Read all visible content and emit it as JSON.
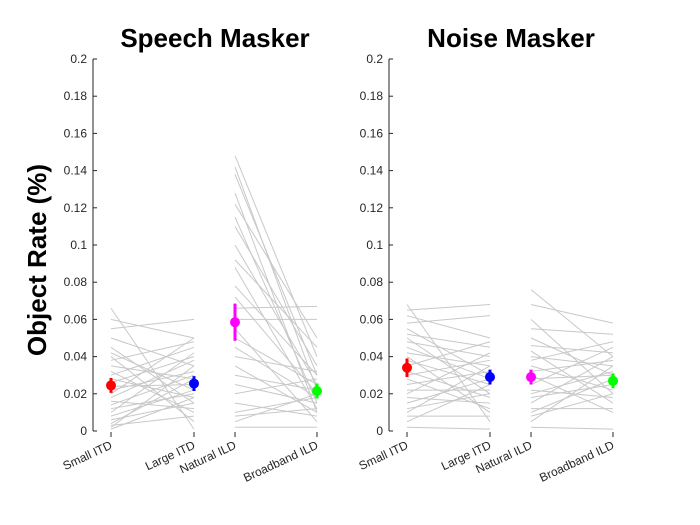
{
  "chart_data": {
    "type": "scatter",
    "ylabel": "Object Rate (%)",
    "ylim": [
      0,
      0.2
    ],
    "yticks": [
      0,
      0.02,
      0.04,
      0.06,
      0.08,
      0.1,
      0.12,
      0.14,
      0.16,
      0.18,
      0.2
    ],
    "ytick_labels": [
      "0",
      "0.02",
      "0.04",
      "0.06",
      "0.08",
      "0.1",
      "0.12",
      "0.14",
      "0.16",
      "0.18",
      "0.2"
    ],
    "conditions": [
      "Small ITD",
      "Large ITD",
      "Natural ILD",
      "Broadband ILD"
    ],
    "condition_colors": [
      "#ff0000",
      "#0000ff",
      "#ff00ff",
      "#00ff00"
    ],
    "subject_line_color": "#c8c8c8",
    "panels": [
      {
        "title": "Speech Masker",
        "means": [
          0.0245,
          0.0255,
          0.0585,
          0.0215
        ],
        "errors": [
          0.004,
          0.004,
          0.01,
          0.004
        ],
        "subjects_itd": [
          [
            0.066,
            0.001
          ],
          [
            0.06,
            0.05
          ],
          [
            0.055,
            0.06
          ],
          [
            0.05,
            0.035
          ],
          [
            0.045,
            0.015
          ],
          [
            0.042,
            0.022
          ],
          [
            0.04,
            0.005
          ],
          [
            0.038,
            0.048
          ],
          [
            0.035,
            0.028
          ],
          [
            0.032,
            0.01
          ],
          [
            0.03,
            0.045
          ],
          [
            0.028,
            0.018
          ],
          [
            0.026,
            0.04
          ],
          [
            0.024,
            0.025
          ],
          [
            0.022,
            0.032
          ],
          [
            0.02,
            0.05
          ],
          [
            0.018,
            0.038
          ],
          [
            0.016,
            0.012
          ],
          [
            0.014,
            0.03
          ],
          [
            0.012,
            0.02
          ],
          [
            0.01,
            0.042
          ],
          [
            0.008,
            0.022
          ],
          [
            0.006,
            0.015
          ],
          [
            0.004,
            0.028
          ],
          [
            0.003,
            0.008
          ],
          [
            0.002,
            0.035
          ],
          [
            0.001,
            0.018
          ]
        ],
        "subjects_ild": [
          [
            0.148,
            0.04
          ],
          [
            0.142,
            0.022
          ],
          [
            0.138,
            0.03
          ],
          [
            0.128,
            0.01
          ],
          [
            0.122,
            0.05
          ],
          [
            0.115,
            0.015
          ],
          [
            0.11,
            0.035
          ],
          [
            0.1,
            0.025
          ],
          [
            0.092,
            0.045
          ],
          [
            0.088,
            0.012
          ],
          [
            0.078,
            0.03
          ],
          [
            0.072,
            0.02
          ],
          [
            0.066,
            0.067
          ],
          [
            0.06,
            0.06
          ],
          [
            0.055,
            0.005
          ],
          [
            0.05,
            0.025
          ],
          [
            0.045,
            0.018
          ],
          [
            0.04,
            0.032
          ],
          [
            0.035,
            0.01
          ],
          [
            0.03,
            0.022
          ],
          [
            0.025,
            0.015
          ],
          [
            0.02,
            0.028
          ],
          [
            0.015,
            0.008
          ],
          [
            0.01,
            0.018
          ],
          [
            0.008,
            0.012
          ],
          [
            0.005,
            0.02
          ],
          [
            0.002,
            0.002
          ]
        ]
      },
      {
        "title": "Noise Masker",
        "means": [
          0.034,
          0.029,
          0.029,
          0.027
        ],
        "errors": [
          0.005,
          0.004,
          0.004,
          0.004
        ],
        "subjects_itd": [
          [
            0.068,
            0.005
          ],
          [
            0.065,
            0.068
          ],
          [
            0.062,
            0.05
          ],
          [
            0.058,
            0.062
          ],
          [
            0.055,
            0.03
          ],
          [
            0.052,
            0.045
          ],
          [
            0.05,
            0.02
          ],
          [
            0.048,
            0.04
          ],
          [
            0.045,
            0.028
          ],
          [
            0.042,
            0.035
          ],
          [
            0.04,
            0.01
          ],
          [
            0.038,
            0.025
          ],
          [
            0.035,
            0.048
          ],
          [
            0.032,
            0.018
          ],
          [
            0.03,
            0.038
          ],
          [
            0.028,
            0.012
          ],
          [
            0.025,
            0.032
          ],
          [
            0.022,
            0.022
          ],
          [
            0.02,
            0.042
          ],
          [
            0.018,
            0.015
          ],
          [
            0.015,
            0.028
          ],
          [
            0.012,
            0.02
          ],
          [
            0.01,
            0.035
          ],
          [
            0.008,
            0.008
          ],
          [
            0.005,
            0.025
          ],
          [
            0.002,
            0.001
          ]
        ],
        "subjects_ild": [
          [
            0.076,
            0.04
          ],
          [
            0.068,
            0.058
          ],
          [
            0.06,
            0.02
          ],
          [
            0.055,
            0.052
          ],
          [
            0.05,
            0.03
          ],
          [
            0.046,
            0.042
          ],
          [
            0.043,
            0.015
          ],
          [
            0.04,
            0.035
          ],
          [
            0.038,
            0.048
          ],
          [
            0.035,
            0.022
          ],
          [
            0.032,
            0.038
          ],
          [
            0.03,
            0.01
          ],
          [
            0.028,
            0.03
          ],
          [
            0.025,
            0.045
          ],
          [
            0.022,
            0.018
          ],
          [
            0.02,
            0.032
          ],
          [
            0.018,
            0.025
          ],
          [
            0.015,
            0.04
          ],
          [
            0.012,
            0.012
          ],
          [
            0.01,
            0.028
          ],
          [
            0.008,
            0.02
          ],
          [
            0.005,
            0.035
          ],
          [
            0.002,
            0.001
          ]
        ]
      }
    ]
  }
}
